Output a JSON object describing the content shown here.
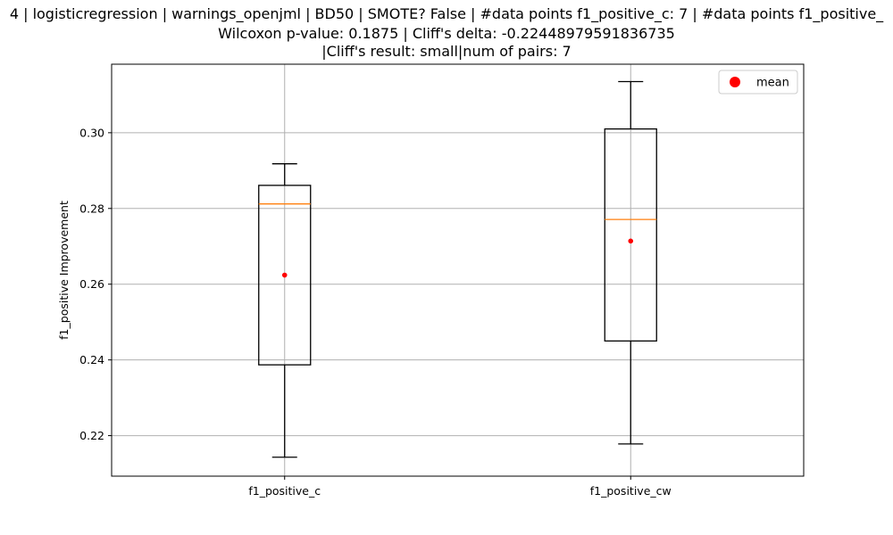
{
  "chart_data": {
    "type": "boxplot",
    "title_lines": [
      "4 | logisticregression | warnings_openjml | BD50 | SMOTE? False | #data points f1_positive_c: 7 | #data points f1_positive_",
      "Wilcoxon p-value: 0.1875 | Cliff's delta: -0.22448979591836735",
      "|Cliff's result: small|num of pairs: 7"
    ],
    "ylabel": "f1_positive Improvement",
    "xlabel": "",
    "ylim": [
      0.2093,
      0.3181
    ],
    "yticks": [
      0.22,
      0.24,
      0.26,
      0.28,
      0.3
    ],
    "ytick_labels": [
      "0.22",
      "0.24",
      "0.26",
      "0.28",
      "0.30"
    ],
    "grid": true,
    "legend": {
      "placement": "top-right",
      "entries": [
        {
          "label": "mean",
          "marker": "circle",
          "color": "#ff0000"
        }
      ]
    },
    "colors": {
      "box": "#000000",
      "median": "#ff7f0e",
      "mean": "#ff0000",
      "grid": "#b0b0b0"
    },
    "categories": [
      "f1_positive_c",
      "f1_positive_cw"
    ],
    "boxes": [
      {
        "name": "f1_positive_c",
        "whisker_low": 0.2143,
        "q1": 0.2387,
        "median": 0.2812,
        "q3": 0.2861,
        "whisker_high": 0.2918,
        "mean": 0.2624
      },
      {
        "name": "f1_positive_cw",
        "whisker_low": 0.2178,
        "q1": 0.245,
        "median": 0.2771,
        "q3": 0.301,
        "whisker_high": 0.3135,
        "mean": 0.2714
      }
    ]
  }
}
